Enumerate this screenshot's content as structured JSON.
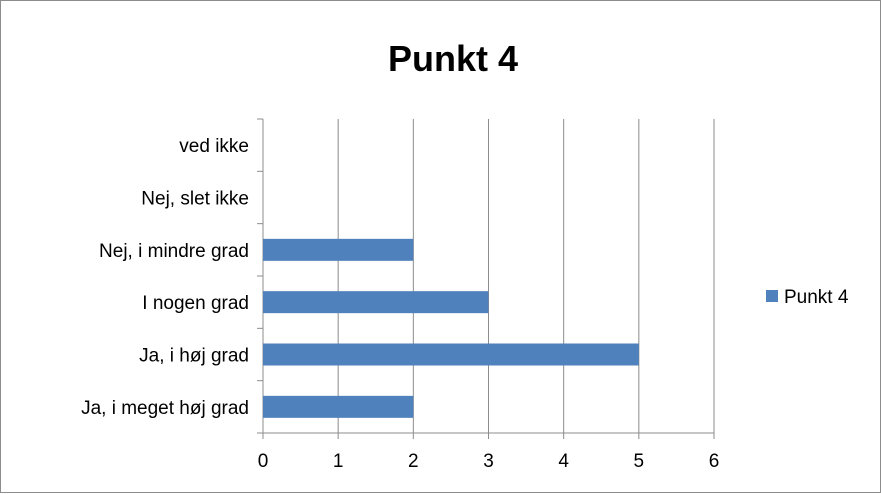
{
  "chart_data": {
    "type": "bar",
    "orientation": "horizontal",
    "title": "Punkt 4",
    "categories": [
      "Ja, i meget høj grad",
      "Ja, i høj grad",
      "I nogen grad",
      "Nej, i mindre grad",
      "Nej, slet ikke",
      "ved ikke"
    ],
    "series": [
      {
        "name": "Punkt 4",
        "values": [
          2,
          5,
          3,
          2,
          0,
          0
        ],
        "color": "#4f81bd"
      }
    ],
    "xlim": [
      0,
      6
    ],
    "x_ticks": [
      "0",
      "1",
      "2",
      "3",
      "4",
      "5",
      "6"
    ],
    "grid": "vertical",
    "legend_position": "right"
  }
}
